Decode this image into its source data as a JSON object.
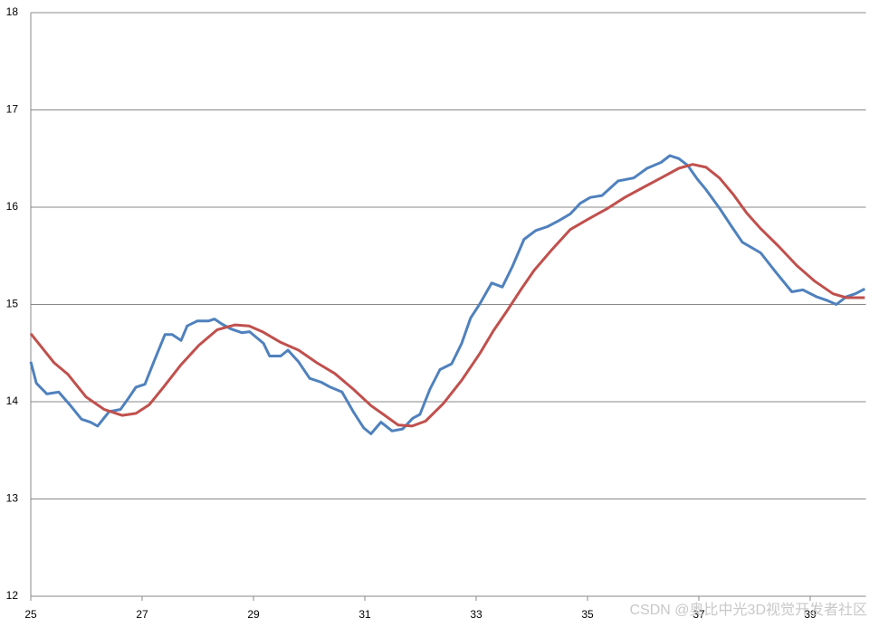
{
  "chart_data": {
    "type": "line",
    "xlim": [
      25,
      40
    ],
    "xticks": [
      25,
      27,
      29,
      31,
      33,
      35,
      37,
      39
    ],
    "ylim": [
      12,
      18
    ],
    "yticks": [
      12,
      13,
      14,
      15,
      16,
      17,
      18
    ],
    "grid": true,
    "watermark": "CSDN @奥比中光3D视觉开发者社区",
    "series": [
      {
        "color": "#4f81bd",
        "x": [
          25.0,
          25.1,
          25.29,
          25.5,
          25.7,
          25.91,
          26.07,
          26.2,
          26.41,
          26.61,
          26.76,
          26.89,
          27.05,
          27.21,
          27.41,
          27.54,
          27.7,
          27.81,
          27.99,
          28.19,
          28.3,
          28.43,
          28.59,
          28.79,
          28.93,
          29.18,
          29.29,
          29.49,
          29.62,
          29.81,
          30.01,
          30.22,
          30.38,
          30.59,
          30.79,
          30.98,
          31.11,
          31.29,
          31.49,
          31.68,
          31.86,
          31.99,
          32.17,
          32.35,
          32.56,
          32.74,
          32.9,
          33.07,
          33.28,
          33.47,
          33.65,
          33.86,
          34.07,
          34.28,
          34.48,
          34.69,
          34.87,
          35.05,
          35.26,
          35.55,
          35.83,
          36.07,
          36.32,
          36.48,
          36.64,
          36.8,
          36.97,
          37.13,
          37.37,
          37.59,
          37.78,
          38.11,
          38.37,
          38.67,
          38.87,
          39.11,
          39.31,
          39.47,
          39.65,
          39.81,
          39.98
        ],
        "values": [
          14.41,
          14.19,
          14.08,
          14.1,
          13.97,
          13.82,
          13.79,
          13.75,
          13.9,
          13.92,
          14.04,
          14.15,
          14.18,
          14.41,
          14.69,
          14.69,
          14.63,
          14.78,
          14.83,
          14.83,
          14.85,
          14.8,
          14.75,
          14.71,
          14.72,
          14.6,
          14.47,
          14.47,
          14.53,
          14.41,
          14.24,
          14.2,
          14.15,
          14.1,
          13.9,
          13.73,
          13.67,
          13.79,
          13.7,
          13.72,
          13.83,
          13.87,
          14.13,
          14.33,
          14.39,
          14.6,
          14.86,
          15.01,
          15.22,
          15.18,
          15.39,
          15.67,
          15.76,
          15.8,
          15.86,
          15.93,
          16.04,
          16.1,
          16.12,
          16.27,
          16.3,
          16.4,
          16.46,
          16.53,
          16.5,
          16.43,
          16.29,
          16.18,
          15.99,
          15.8,
          15.64,
          15.53,
          15.34,
          15.13,
          15.15,
          15.08,
          15.04,
          15.0,
          15.08,
          15.11,
          15.16
        ]
      },
      {
        "color": "#c0504d",
        "x": [
          25.0,
          25.42,
          25.67,
          25.99,
          26.32,
          26.64,
          26.89,
          27.13,
          27.37,
          27.7,
          28.02,
          28.35,
          28.67,
          28.92,
          29.16,
          29.49,
          29.81,
          30.14,
          30.46,
          30.79,
          31.11,
          31.36,
          31.6,
          31.85,
          32.09,
          32.41,
          32.74,
          33.07,
          33.31,
          33.55,
          33.8,
          34.04,
          34.37,
          34.69,
          35.02,
          35.34,
          35.67,
          35.99,
          36.32,
          36.64,
          36.89,
          37.13,
          37.37,
          37.62,
          37.86,
          38.11,
          38.43,
          38.76,
          39.08,
          39.41,
          39.65,
          39.98
        ],
        "values": [
          14.7,
          14.4,
          14.28,
          14.05,
          13.92,
          13.86,
          13.88,
          13.97,
          14.14,
          14.38,
          14.58,
          14.74,
          14.79,
          14.78,
          14.72,
          14.61,
          14.53,
          14.4,
          14.29,
          14.13,
          13.96,
          13.86,
          13.76,
          13.75,
          13.8,
          13.98,
          14.22,
          14.5,
          14.73,
          14.93,
          15.15,
          15.35,
          15.57,
          15.77,
          15.88,
          15.98,
          16.1,
          16.2,
          16.3,
          16.4,
          16.44,
          16.41,
          16.3,
          16.13,
          15.94,
          15.78,
          15.6,
          15.4,
          15.24,
          15.11,
          15.07,
          15.07
        ]
      }
    ]
  }
}
